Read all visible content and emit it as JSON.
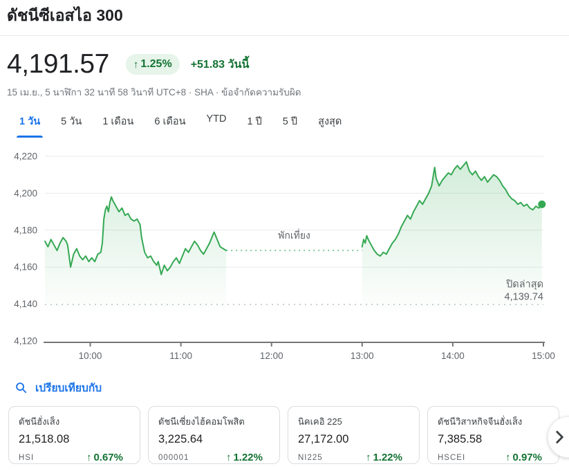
{
  "header": {
    "title": "ดัชนีซีเอสไอ 300"
  },
  "quote": {
    "price": "4,191.57",
    "badge": {
      "arrow": "↑",
      "percent": "1.25%"
    },
    "change_text": "+51.83 วันนี้",
    "timestamp": "15 เม.ย., 5 นาฬิกา 32 นาที 58 วินาที UTC+8 · SHA · ข้อจำกัดความรับผิด"
  },
  "tabs": {
    "items": [
      {
        "label": "1 วัน",
        "active": true
      },
      {
        "label": "5 วัน",
        "active": false
      },
      {
        "label": "1 เดือน",
        "active": false
      },
      {
        "label": "6 เดือน",
        "active": false
      },
      {
        "label": "YTD",
        "active": false
      },
      {
        "label": "1 ปี",
        "active": false
      },
      {
        "label": "5 ปี",
        "active": false
      },
      {
        "label": "สูงสุด",
        "active": false
      }
    ]
  },
  "chart_data": {
    "type": "line",
    "title": "ดัชนีซีเอสไอ 300 — 1 วัน",
    "x_unit": "time-of-day",
    "x_range_minutes": [
      570,
      900
    ],
    "x_ticks": [
      {
        "label": "10:00",
        "minutes": 600
      },
      {
        "label": "11:00",
        "minutes": 660
      },
      {
        "label": "12:00",
        "minutes": 720
      },
      {
        "label": "13:00",
        "minutes": 780
      },
      {
        "label": "14:00",
        "minutes": 840
      },
      {
        "label": "15:00",
        "minutes": 900
      }
    ],
    "ylim": [
      4120,
      4220
    ],
    "y_ticks": [
      {
        "label": "4,220",
        "value": 4220,
        "style": "grid"
      },
      {
        "label": "4,200",
        "value": 4200,
        "style": "grid"
      },
      {
        "label": "4,180",
        "value": 4180,
        "style": "grid"
      },
      {
        "label": "4,160",
        "value": 4160,
        "style": "grid"
      },
      {
        "label": "4,140",
        "value": 4140,
        "style": "prev-close-dotted"
      },
      {
        "label": "4,120",
        "value": 4120,
        "style": "axis"
      }
    ],
    "previous_close": {
      "label": "ปิดล่าสุด",
      "value": 4139.74,
      "value_label": "4,139.74"
    },
    "lunch_break": {
      "label": "พักเที่ยง",
      "start_minutes": 690,
      "end_minutes": 780,
      "value": 4169
    },
    "sessions": [
      {
        "name": "morning",
        "points": [
          [
            570,
            4174
          ],
          [
            572,
            4171
          ],
          [
            574,
            4175
          ],
          [
            576,
            4172
          ],
          [
            578,
            4169
          ],
          [
            580,
            4173
          ],
          [
            582,
            4176
          ],
          [
            584,
            4174
          ],
          [
            585,
            4172
          ],
          [
            587,
            4160
          ],
          [
            589,
            4167
          ],
          [
            591,
            4170
          ],
          [
            593,
            4166
          ],
          [
            595,
            4164
          ],
          [
            597,
            4166
          ],
          [
            599,
            4163
          ],
          [
            601,
            4165
          ],
          [
            603,
            4163
          ],
          [
            605,
            4167
          ],
          [
            607,
            4168
          ],
          [
            608,
            4173
          ],
          [
            609,
            4186
          ],
          [
            610,
            4191
          ],
          [
            611,
            4193
          ],
          [
            612,
            4190
          ],
          [
            613,
            4195
          ],
          [
            614,
            4198
          ],
          [
            615,
            4196
          ],
          [
            617,
            4193
          ],
          [
            619,
            4190
          ],
          [
            621,
            4192
          ],
          [
            623,
            4188
          ],
          [
            625,
            4189
          ],
          [
            627,
            4186
          ],
          [
            629,
            4185
          ],
          [
            631,
            4186
          ],
          [
            633,
            4183
          ],
          [
            634,
            4176
          ],
          [
            636,
            4168
          ],
          [
            638,
            4165
          ],
          [
            640,
            4166
          ],
          [
            642,
            4163
          ],
          [
            644,
            4161
          ],
          [
            645,
            4163
          ],
          [
            647,
            4156
          ],
          [
            649,
            4161
          ],
          [
            651,
            4158
          ],
          [
            653,
            4160
          ],
          [
            655,
            4163
          ],
          [
            657,
            4165
          ],
          [
            659,
            4162
          ],
          [
            661,
            4166
          ],
          [
            663,
            4170
          ],
          [
            665,
            4168
          ],
          [
            667,
            4171
          ],
          [
            669,
            4174
          ],
          [
            671,
            4172
          ],
          [
            673,
            4169
          ],
          [
            675,
            4167
          ],
          [
            677,
            4170
          ],
          [
            679,
            4173
          ],
          [
            681,
            4177
          ],
          [
            682,
            4179
          ],
          [
            684,
            4175
          ],
          [
            686,
            4171
          ],
          [
            688,
            4170
          ],
          [
            690,
            4169
          ]
        ],
        "end_dot": false
      },
      {
        "name": "afternoon",
        "points": [
          [
            780,
            4171
          ],
          [
            781,
            4175
          ],
          [
            782,
            4173
          ],
          [
            783,
            4177
          ],
          [
            784,
            4175
          ],
          [
            786,
            4172
          ],
          [
            788,
            4169
          ],
          [
            790,
            4167
          ],
          [
            792,
            4166
          ],
          [
            794,
            4168
          ],
          [
            796,
            4167
          ],
          [
            798,
            4170
          ],
          [
            800,
            4173
          ],
          [
            802,
            4175
          ],
          [
            804,
            4178
          ],
          [
            806,
            4182
          ],
          [
            808,
            4185
          ],
          [
            810,
            4188
          ],
          [
            812,
            4186
          ],
          [
            814,
            4190
          ],
          [
            816,
            4193
          ],
          [
            818,
            4196
          ],
          [
            820,
            4194
          ],
          [
            822,
            4197
          ],
          [
            824,
            4200
          ],
          [
            826,
            4204
          ],
          [
            828,
            4214
          ],
          [
            829,
            4208
          ],
          [
            831,
            4204
          ],
          [
            833,
            4207
          ],
          [
            835,
            4209
          ],
          [
            837,
            4211
          ],
          [
            839,
            4210
          ],
          [
            841,
            4213
          ],
          [
            843,
            4215
          ],
          [
            845,
            4213
          ],
          [
            847,
            4215
          ],
          [
            849,
            4217
          ],
          [
            851,
            4212
          ],
          [
            853,
            4210
          ],
          [
            855,
            4212
          ],
          [
            857,
            4209
          ],
          [
            859,
            4207
          ],
          [
            861,
            4209
          ],
          [
            863,
            4206
          ],
          [
            865,
            4208
          ],
          [
            867,
            4210
          ],
          [
            869,
            4209
          ],
          [
            871,
            4207
          ],
          [
            873,
            4204
          ],
          [
            875,
            4202
          ],
          [
            877,
            4199
          ],
          [
            879,
            4197
          ],
          [
            881,
            4196
          ],
          [
            883,
            4194
          ],
          [
            885,
            4195
          ],
          [
            887,
            4193
          ],
          [
            889,
            4194
          ],
          [
            891,
            4192
          ],
          [
            893,
            4191
          ],
          [
            895,
            4193
          ],
          [
            897,
            4192
          ],
          [
            899,
            4194
          ]
        ],
        "end_dot": true
      }
    ],
    "colors": {
      "line": "#34a853",
      "fill_top": "rgba(52,168,83,0.22)",
      "fill_bottom": "rgba(52,168,83,0)",
      "lunch_dotted": "#7fc995",
      "grid": "#e8eaed",
      "prev_close_dotted": "#c0c4c9",
      "axis": "#757575",
      "axis_text": "#5f6368"
    },
    "grid": true,
    "legend": false
  },
  "compare": {
    "label": "เปรียบเทียบกับ",
    "search_icon": "search-icon",
    "next_icon": "chevron-right-icon",
    "cards": [
      {
        "name": "ดัชนีฮั่งเส็ง",
        "value": "21,518.08",
        "symbol": "HSI",
        "change_arrow": "↑",
        "change_percent": "0.67%"
      },
      {
        "name": "ดัชนีเซี่ยงไฮ้คอมโพสิต",
        "value": "3,225.64",
        "symbol": "000001",
        "change_arrow": "↑",
        "change_percent": "1.22%"
      },
      {
        "name": "นิคเคอิ 225",
        "value": "27,172.00",
        "symbol": "NI225",
        "change_arrow": "↑",
        "change_percent": "1.22%"
      },
      {
        "name": "ดัชนีวิสาหกิจจีนฮั่งเส็ง",
        "value": "7,385.58",
        "symbol": "HSCEI",
        "change_arrow": "↑",
        "change_percent": "0.97%"
      }
    ]
  },
  "colors": {
    "accent_blue": "#1a73e8",
    "positive_green": "#137333",
    "badge_bg": "#e6f4ea",
    "text_primary": "#202124",
    "text_secondary": "#5f6368"
  }
}
